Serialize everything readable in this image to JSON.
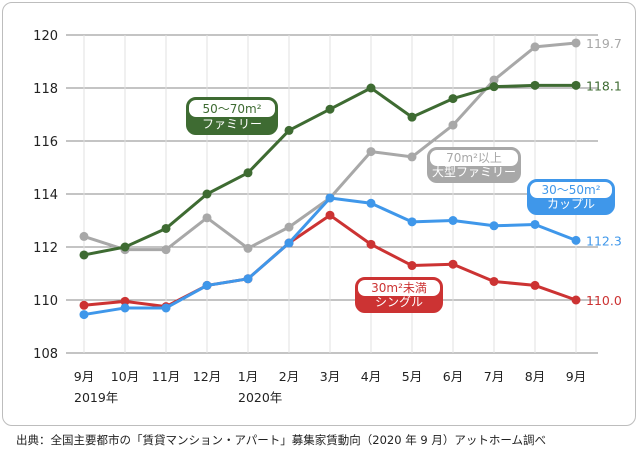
{
  "source_note": "出典：全国主要都市の「賃貸マンション・アパート」募集家賃動向（2020 年 9 月）アットホーム調べ",
  "chart_data": {
    "type": "line",
    "title": "",
    "xlabel": "",
    "ylabel": "",
    "ylim": [
      108,
      120
    ],
    "yticks": [
      108,
      110,
      112,
      114,
      116,
      118,
      120
    ],
    "grid": true,
    "categories": [
      "9月",
      "10月",
      "11月",
      "12月",
      "1月",
      "2月",
      "3月",
      "4月",
      "5月",
      "6月",
      "7月",
      "8月",
      "9月"
    ],
    "year_labels": [
      {
        "index": 0,
        "text": "2019年"
      },
      {
        "index": 4,
        "text": "2020年"
      }
    ],
    "series": [
      {
        "name": "50〜70m²\nファミリー",
        "end_label": "118.1",
        "color": "#3e6b32",
        "values": [
          111.7,
          112.0,
          112.7,
          114.0,
          114.8,
          116.4,
          117.2,
          118.0,
          116.9,
          117.6,
          118.05,
          118.1,
          118.1
        ]
      },
      {
        "name": "70m²以上\n大型ファミリー",
        "end_label": "119.7",
        "color": "#a8a8a8",
        "values": [
          112.4,
          111.9,
          111.9,
          113.1,
          111.95,
          112.75,
          113.85,
          115.6,
          115.4,
          116.6,
          118.3,
          119.55,
          119.7
        ]
      },
      {
        "name": "30〜50m²\nカップル",
        "end_label": "112.3",
        "color": "#3f97ea",
        "values": [
          109.45,
          109.7,
          109.7,
          110.55,
          110.8,
          112.15,
          113.85,
          113.65,
          112.95,
          113.0,
          112.8,
          112.85,
          112.25
        ]
      },
      {
        "name": "30m²未満\nシングル",
        "end_label": "110.0",
        "color": "#cc3333",
        "values": [
          109.8,
          109.95,
          109.75,
          110.55,
          110.8,
          112.15,
          113.2,
          112.1,
          111.3,
          111.35,
          110.7,
          110.55,
          110.0
        ]
      }
    ]
  }
}
